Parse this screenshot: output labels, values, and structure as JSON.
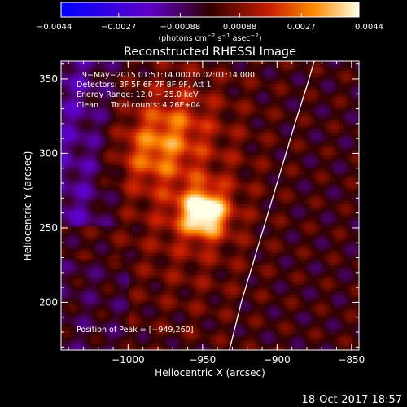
{
  "chart_data": {
    "type": "heatmap",
    "title": "Reconstructed RHESSI Image",
    "xlabel": "Heliocentric X (arcsec)",
    "ylabel": "Heliocentric Y (arcsec)",
    "xlim": [
      -1045,
      -845
    ],
    "ylim": [
      168,
      362
    ],
    "x_ticks": [
      -1000,
      -950,
      -900,
      -850
    ],
    "y_ticks": [
      200,
      250,
      300,
      350
    ],
    "x_tick_labels": [
      "−1000",
      "−950",
      "−900",
      "−850"
    ],
    "y_tick_labels": [
      "200",
      "250",
      "300",
      "350"
    ],
    "colorbar": {
      "range": [
        -0.0044,
        0.0044
      ],
      "ticks": [
        -0.0044,
        -0.0027,
        -0.00088,
        0.00088,
        0.0027,
        0.0044
      ],
      "tick_labels": [
        "−0.0044",
        "−0.0027",
        "−0.00088",
        "0.00088",
        "0.0027",
        "0.0044"
      ],
      "units_main": "(photons cm",
      "units_sup1": "−2",
      "units_mid1": " s",
      "units_sup2": "−1",
      "units_mid2": " asec",
      "units_sup3": "−2",
      "units_end": ")"
    },
    "annotations": [
      "9−May−2015 01:51:14.000 to 02:01:14.000",
      "Detectors: 3F 5F 6F 7F 8F 9F, Att 1",
      "Energy Range: 12.0 − 25.0 keV",
      "Clean     Total counts: 4.26E+04"
    ],
    "peak_label": "Position of Peak = [−949,260]",
    "peak": {
      "x": -949,
      "y": 260,
      "value": 0.0044
    },
    "secondary_sources": [
      {
        "x": -985,
        "y": 300,
        "value": 0.0016
      },
      {
        "x": -970,
        "y": 320,
        "value": 0.0012
      }
    ],
    "limb": [
      [
        -932,
        168
      ],
      [
        -924,
        200
      ],
      [
        -912,
        240
      ],
      [
        -900,
        280
      ],
      [
        -888,
        320
      ],
      [
        -880,
        345
      ],
      [
        -875,
        362
      ]
    ]
  },
  "footer": {
    "timestamp": "18-Oct-2017 18:57"
  }
}
